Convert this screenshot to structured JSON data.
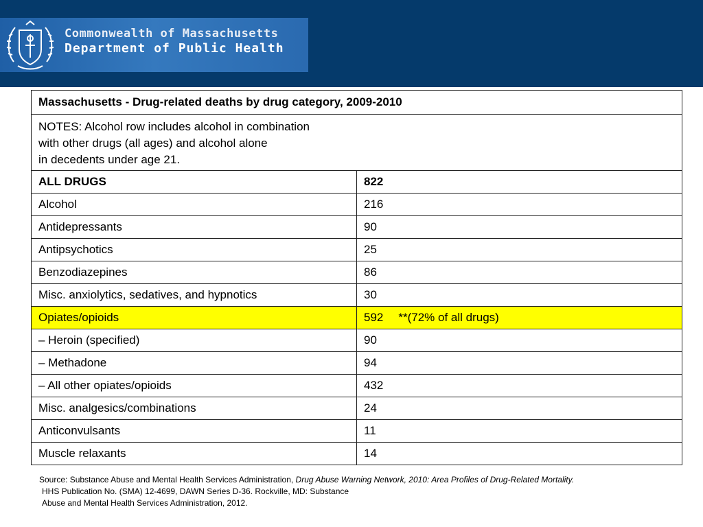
{
  "header": {
    "org_line1": "Commonwealth of Massachusetts",
    "org_line2": "Department of Public Health",
    "band_color": "#053a6b",
    "logo_bg_color": "#2e6fb5"
  },
  "table": {
    "title": "Massachusetts - Drug-related deaths by drug category, 2009-2010",
    "notes": [
      "NOTES: Alcohol row includes alcohol in combination",
      "with other drugs (all ages) and alcohol alone",
      "in decedents under age 21."
    ],
    "rows": [
      {
        "category": "ALL DRUGS",
        "value": "822",
        "extra": ""
      },
      {
        "category": "Alcohol",
        "value": "216",
        "extra": ""
      },
      {
        "category": "Antidepressants",
        "value": "90",
        "extra": ""
      },
      {
        "category": "Antipsychotics",
        "value": "25",
        "extra": ""
      },
      {
        "category": "Benzodiazepines",
        "value": "86",
        "extra": ""
      },
      {
        "category": "Misc. anxiolytics, sedatives, and hypnotics",
        "value": "30",
        "extra": ""
      },
      {
        "category": "Opiates/opioids",
        "value": "592",
        "extra": "**(72% of all drugs)"
      },
      {
        "category": "– Heroin (specified)",
        "value": "90",
        "extra": ""
      },
      {
        "category": "– Methadone",
        "value": "94",
        "extra": ""
      },
      {
        "category": "– All other opiates/opioids",
        "value": "432",
        "extra": ""
      },
      {
        "category": "Misc. analgesics/combinations",
        "value": "24",
        "extra": ""
      },
      {
        "category": "Anticonvulsants",
        "value": "11",
        "extra": ""
      },
      {
        "category": "Muscle relaxants",
        "value": "14",
        "extra": ""
      }
    ],
    "highlight_color": "#ffff00"
  },
  "source": {
    "prefix": "Source: Substance Abuse and Mental Health Services Administration, ",
    "title_italic": "Drug Abuse Warning Network, 2010: Area Profiles of Drug-Related Mortality.",
    "line2": "HHS Publication No. (SMA) 12-4699, DAWN Series D-36. Rockville, MD: Substance",
    "line3": "Abuse and Mental Health Services Administration, 2012."
  }
}
